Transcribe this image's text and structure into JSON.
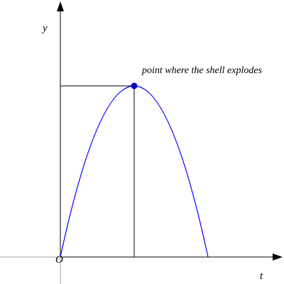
{
  "axes": {
    "y_label": "y",
    "x_label": "t",
    "origin_label": "O"
  },
  "annotation": "point where the shell explodes"
}
